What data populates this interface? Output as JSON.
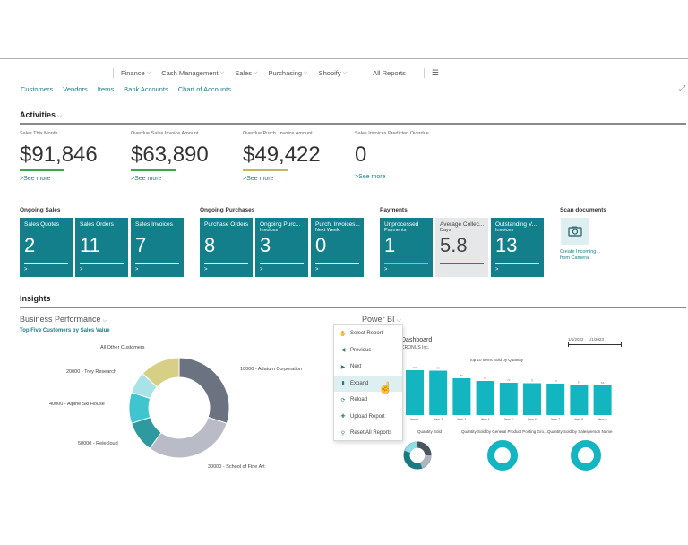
{
  "nav": {
    "items": [
      {
        "label": "Finance",
        "has_dropdown": true
      },
      {
        "label": "Cash Management",
        "has_dropdown": true
      },
      {
        "label": "Sales",
        "has_dropdown": true
      },
      {
        "label": "Purchasing",
        "has_dropdown": true
      },
      {
        "label": "Shopify",
        "has_dropdown": true
      }
    ],
    "all_reports": "All Reports",
    "menu_icon": "hamburger-icon"
  },
  "quicklinks": [
    "Customers",
    "Vendors",
    "Items",
    "Bank Accounts",
    "Chart of Accounts"
  ],
  "activities": {
    "title": "Activities",
    "kpis": [
      {
        "label": "Sales This Month",
        "value": "$91,846",
        "bar_color": "#3aa847",
        "link": "See more"
      },
      {
        "label": "Overdue Sales Invoice Amount",
        "value": "$63,890",
        "bar_color": "#3aa847",
        "link": "See more"
      },
      {
        "label": "Overdue Purch. Invoice Amount",
        "value": "$49,422",
        "bar_color": "#c8b45a",
        "link": "See more"
      },
      {
        "label": "Sales Invoices Predicted Overdue",
        "value": "0",
        "bar_color": "#d8d8d8",
        "link": "See more"
      }
    ]
  },
  "cue_groups": {
    "ongoing_sales": {
      "title": "Ongoing Sales",
      "tiles": [
        {
          "label": "Sales Quotes",
          "sub": "",
          "value": "2"
        },
        {
          "label": "Sales Orders",
          "sub": "",
          "value": "11"
        },
        {
          "label": "Sales Invoices",
          "sub": "",
          "value": "7"
        }
      ]
    },
    "ongoing_purchases": {
      "title": "Ongoing Purchases",
      "tiles": [
        {
          "label": "Purchase Orders",
          "sub": "",
          "value": "8"
        },
        {
          "label": "Ongoing Purc...",
          "sub": "Invoices",
          "value": "3"
        },
        {
          "label": "Purch. Invoices...",
          "sub": "Next Week",
          "value": "0"
        }
      ]
    },
    "payments": {
      "title": "Payments",
      "tiles": [
        {
          "label": "Unprocessed",
          "sub": "Payments",
          "value": "1",
          "bar_color": "#7ed957"
        },
        {
          "label": "Average Collec...",
          "sub": "Days",
          "value": "5.8",
          "bar_color": "#2e8b3a"
        },
        {
          "label": "Outstanding V...",
          "sub": "Invoices",
          "value": "13",
          "bar_color": "#bfeaf0"
        }
      ]
    },
    "scan": {
      "title": "Scan documents",
      "action": "Create Incoming...",
      "action_sub": "from Camera",
      "icon": "camera-icon"
    }
  },
  "insights": {
    "title": "Insights",
    "business_performance": {
      "title": "Business Performance",
      "subtitle": "Top Five Customers by Sales Value"
    },
    "power_bi": {
      "title": "Power BI",
      "menu": [
        {
          "label": "Select Report",
          "icon": "select-report-icon"
        },
        {
          "label": "Previous",
          "icon": "previous-icon"
        },
        {
          "label": "Next",
          "icon": "next-icon"
        },
        {
          "label": "Expand",
          "icon": "expand-chart-icon",
          "hover": true
        },
        {
          "label": "Reload",
          "icon": "reload-icon"
        },
        {
          "label": "Upload Report",
          "icon": "upload-icon"
        },
        {
          "label": "Reset All Reports",
          "icon": "reset-icon"
        }
      ],
      "report_title": "Dashboard",
      "report_sub": "CRONUS Inc.",
      "date_from": "1/1/2022",
      "date_to": "1/1/2023",
      "small_charts": [
        "Quantity Sold",
        "Quantity Sold by General Product Posting Gro...",
        "Quantity Sold by Salesperson Name"
      ]
    }
  },
  "chart_data": [
    {
      "type": "pie",
      "title": "Top Five Customers by Sales Value",
      "donut": true,
      "labels": [
        "10000 - Adatum Corporation",
        "30000 - School of Fine Art",
        "50000 - Relecloud",
        "40000 - Alpine Ski House",
        "20000 - Trey Research",
        "All Other Customers"
      ],
      "values": [
        30,
        30,
        10,
        10,
        7,
        13
      ],
      "colors": [
        "#6b7380",
        "#b9bcc6",
        "#2e9aa0",
        "#3ec5cf",
        "#a8e3e8",
        "#d6cf85"
      ]
    },
    {
      "type": "bar",
      "title": "Top 10 Items Sold by Quantity",
      "categories": [
        "Item 1",
        "Item 2",
        "Item 3",
        "Item 4",
        "Item 5",
        "Item 6",
        "Item 7",
        "Item 8",
        "Item 9"
      ],
      "values": [
        100,
        99,
        82,
        76,
        72,
        71,
        70,
        67,
        66
      ],
      "color": "#13b5c1"
    }
  ]
}
